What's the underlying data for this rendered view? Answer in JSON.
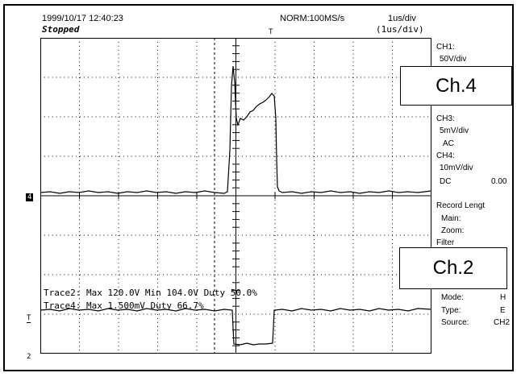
{
  "header": {
    "datetime": "1999/10/17 12:40:23",
    "status": "Stopped",
    "mode": "NORM:100MS/s",
    "timebase": "1us/div",
    "zoom_timebase": "(1us/div)",
    "trigger_mark": "T"
  },
  "sidebar": {
    "ch1_label": "CH1:",
    "ch1_scale": "50V/div",
    "ch3_label": "CH3:",
    "ch3_scale": "5mV/div",
    "ch3_coupling": "AC",
    "ch4_label": "CH4:",
    "ch4_scale": "10mV/div",
    "ch4_coupling": "DC",
    "ch4_offset": "0.00",
    "record_length": "Record Lengt",
    "main": "Main:",
    "zoom": "Zoom:",
    "filter": "Filter",
    "mode_label": "Mode:",
    "mode_value": "H",
    "type_label": "Type:",
    "type_value": "E",
    "source_label": "Source:",
    "source_value": "CH2"
  },
  "callouts": {
    "ch4": "Ch.4",
    "ch2": "Ch.2"
  },
  "measurements": {
    "trace2": "Trace2: Max   120.0V       Min   104.0V       Duty  50.0%",
    "trace4": "Trace4: Max   1.500mV      Duty  66.7%"
  },
  "markers": {
    "ch4_marker": "4",
    "trig_marker": "T",
    "ch2_marker": "2"
  },
  "colors": {
    "trace": "#000000",
    "grid": "#000000"
  }
}
